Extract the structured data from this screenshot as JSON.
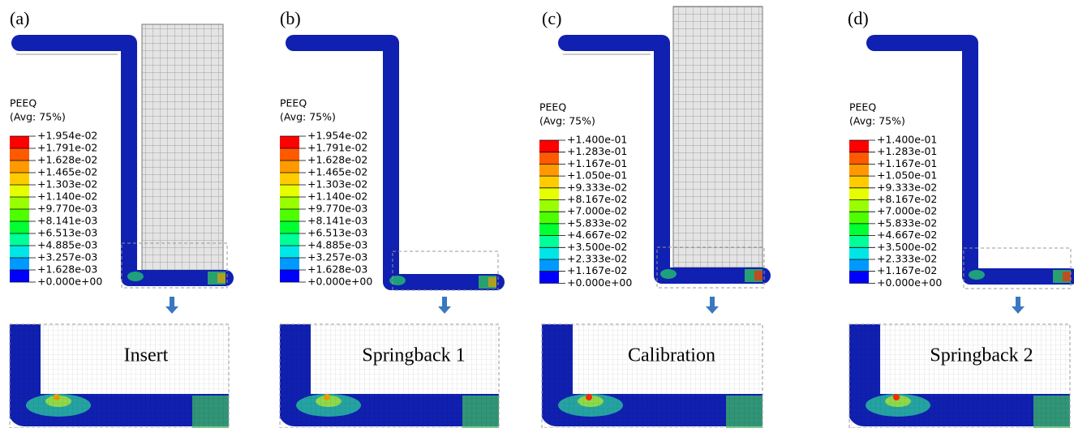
{
  "panels": [
    {
      "label": "(a)",
      "legend": {
        "title": "PEEQ",
        "subtitle": "(Avg: 75%)",
        "values": [
          "+1.954e-02",
          "+1.791e-02",
          "+1.628e-02",
          "+1.465e-02",
          "+1.303e-02",
          "+1.140e-02",
          "+9.770e-03",
          "+8.141e-03",
          "+6.513e-03",
          "+4.885e-03",
          "+3.257e-03",
          "+1.628e-03",
          "+0.000e+00"
        ]
      },
      "caption": "Insert"
    },
    {
      "label": "(b)",
      "legend": {
        "title": "PEEQ",
        "subtitle": "(Avg: 75%)",
        "values": [
          "+1.954e-02",
          "+1.791e-02",
          "+1.628e-02",
          "+1.465e-02",
          "+1.303e-02",
          "+1.140e-02",
          "+9.770e-03",
          "+8.141e-03",
          "+6.513e-03",
          "+4.885e-03",
          "+3.257e-03",
          "+1.628e-03",
          "+0.000e+00"
        ]
      },
      "caption": "Springback 1"
    },
    {
      "label": "(c)",
      "legend": {
        "title": "PEEQ",
        "subtitle": "(Avg: 75%)",
        "values": [
          "+1.400e-01",
          "+1.283e-01",
          "+1.167e-01",
          "+1.050e-01",
          "+9.333e-02",
          "+8.167e-02",
          "+7.000e-02",
          "+5.833e-02",
          "+4.667e-02",
          "+3.500e-02",
          "+2.333e-02",
          "+1.167e-02",
          "+0.000e+00"
        ]
      },
      "caption": "Calibration"
    },
    {
      "label": "(d)",
      "legend": {
        "title": "PEEQ",
        "subtitle": "(Avg: 75%)",
        "values": [
          "+1.400e-01",
          "+1.283e-01",
          "+1.167e-01",
          "+1.050e-01",
          "+9.333e-02",
          "+8.167e-02",
          "+7.000e-02",
          "+5.833e-02",
          "+4.667e-02",
          "+3.500e-02",
          "+2.333e-02",
          "+1.167e-02",
          "+0.000e+00"
        ]
      },
      "caption": "Springback 2"
    }
  ]
}
